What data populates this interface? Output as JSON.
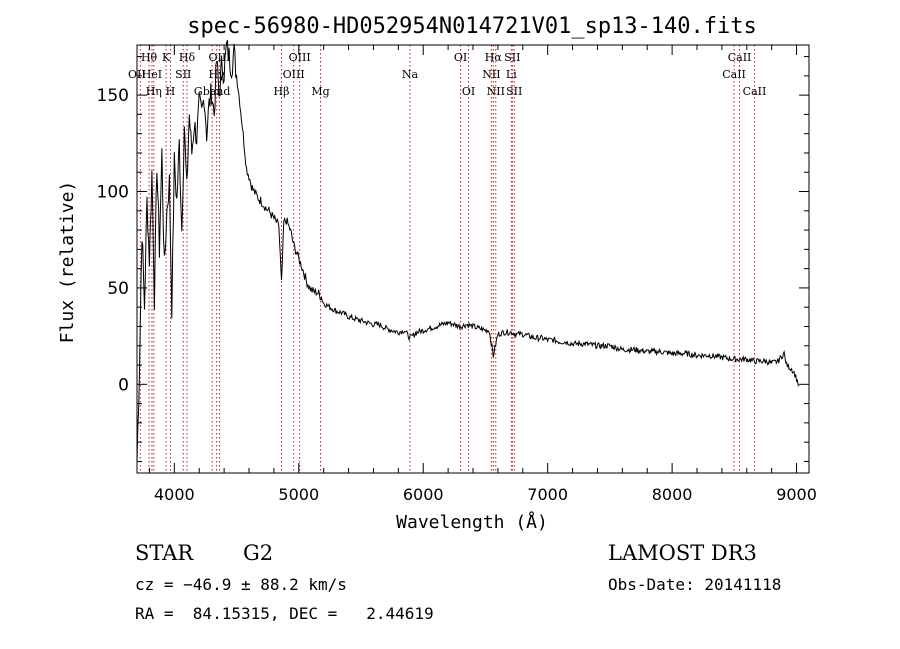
{
  "chart_data": {
    "type": "line",
    "title": "spec-56980-HD052954N014721V01_sp13-140.fits",
    "xlabel": "Wavelength (Å)",
    "ylabel": "Flux (relative)",
    "xlim": [
      3700,
      9100
    ],
    "ylim": [
      -46,
      176
    ],
    "x_ticks": [
      4000,
      5000,
      6000,
      7000,
      8000,
      9000
    ],
    "y_ticks": [
      0,
      50,
      100,
      150
    ],
    "x_tick_labels": [
      "4000",
      "5000",
      "6000",
      "7000",
      "8000",
      "9000"
    ],
    "y_tick_labels": [
      "0",
      "50",
      "100",
      "150"
    ],
    "series": [
      {
        "name": "spectrum",
        "x": [
          3700,
          3720,
          3740,
          3760,
          3780,
          3800,
          3820,
          3840,
          3860,
          3880,
          3900,
          3920,
          3940,
          3960,
          3980,
          4000,
          4020,
          4040,
          4060,
          4080,
          4100,
          4120,
          4140,
          4160,
          4180,
          4200,
          4220,
          4240,
          4260,
          4280,
          4300,
          4320,
          4340,
          4360,
          4380,
          4400,
          4420,
          4440,
          4460,
          4480,
          4500,
          4520,
          4540,
          4560,
          4580,
          4600,
          4620,
          4640,
          4660,
          4680,
          4700,
          4720,
          4740,
          4760,
          4780,
          4800,
          4820,
          4840,
          4861,
          4880,
          4900,
          4920,
          4940,
          4960,
          4980,
          5000,
          5020,
          5040,
          5060,
          5080,
          5100,
          5120,
          5140,
          5160,
          5183,
          5200,
          5250,
          5300,
          5350,
          5400,
          5450,
          5500,
          5550,
          5600,
          5650,
          5700,
          5750,
          5800,
          5850,
          5893,
          5950,
          6000,
          6050,
          6100,
          6150,
          6200,
          6250,
          6300,
          6350,
          6400,
          6450,
          6500,
          6530,
          6563,
          6600,
          6650,
          6700,
          6750,
          6800,
          6850,
          6900,
          6950,
          7000,
          7050,
          7100,
          7150,
          7200,
          7300,
          7400,
          7500,
          7600,
          7700,
          7800,
          7900,
          8000,
          8100,
          8200,
          8300,
          8400,
          8498,
          8542,
          8600,
          8662,
          8700,
          8750,
          8800,
          8850,
          8900,
          8920,
          8940,
          8960,
          8980,
          9000,
          9020
        ],
        "y": [
          -40,
          10,
          80,
          40,
          95,
          65,
          110,
          45,
          115,
          70,
          120,
          60,
          90,
          105,
          40,
          115,
          95,
          125,
          80,
          135,
          100,
          140,
          120,
          135,
          128,
          145,
          140,
          150,
          130,
          145,
          152,
          140,
          168,
          150,
          165,
          162,
          175,
          170,
          165,
          172,
          160,
          150,
          138,
          125,
          112,
          108,
          103,
          100,
          98,
          96,
          95,
          93,
          91,
          90,
          88,
          86,
          84,
          82,
          52,
          84,
          85,
          82,
          78,
          72,
          69,
          65,
          62,
          58,
          54,
          51,
          49,
          48,
          48,
          47,
          45,
          42,
          40,
          38,
          37,
          35,
          34,
          33,
          32,
          31,
          31,
          29,
          28,
          27,
          28,
          24,
          27,
          28,
          29,
          30,
          31,
          32,
          31,
          30,
          31,
          30,
          29,
          28,
          28,
          15,
          26,
          27,
          27,
          26,
          26,
          25,
          24,
          24,
          23,
          23,
          22,
          22,
          21,
          21,
          20,
          20,
          18,
          18,
          17,
          17,
          16,
          16,
          15,
          15,
          14,
          13,
          13,
          13,
          12,
          12,
          12,
          11,
          12,
          16,
          10,
          9,
          8,
          6,
          3,
          -1
        ]
      }
    ],
    "lines": [
      {
        "name": "OII",
        "x": 3727,
        "row": 2,
        "side": "left"
      },
      {
        "name": "Hθ",
        "x": 3797,
        "row": 1,
        "side": "center"
      },
      {
        "name": "HeI",
        "x": 3820,
        "row": 2,
        "side": "center"
      },
      {
        "name": "Hη",
        "x": 3835,
        "row": 3,
        "side": "center"
      },
      {
        "name": "K",
        "x": 3934,
        "row": 1,
        "side": "center"
      },
      {
        "name": "H",
        "x": 3969,
        "row": 3,
        "side": "center"
      },
      {
        "name": "SII",
        "x": 4072,
        "row": 2,
        "side": "center"
      },
      {
        "name": "Hδ",
        "x": 4102,
        "row": 1,
        "side": "center"
      },
      {
        "name": "Gband",
        "x": 4304,
        "row": 3,
        "side": "center"
      },
      {
        "name": "Hγ",
        "x": 4340,
        "row": 2,
        "side": "center"
      },
      {
        "name": "OIII",
        "x": 4363,
        "row": 1,
        "side": "center"
      },
      {
        "name": "Hβ",
        "x": 4861,
        "row": 3,
        "side": "center"
      },
      {
        "name": "OIII",
        "x": 4959,
        "row": 2,
        "side": "center"
      },
      {
        "name": "OIII",
        "x": 5007,
        "row": 1,
        "side": "center"
      },
      {
        "name": "Mg",
        "x": 5175,
        "row": 3,
        "side": "center"
      },
      {
        "name": "Na",
        "x": 5893,
        "row": 2,
        "side": "center"
      },
      {
        "name": "OI",
        "x": 6300,
        "row": 1,
        "side": "center"
      },
      {
        "name": "OI",
        "x": 6364,
        "row": 3,
        "side": "center"
      },
      {
        "name": "NII",
        "x": 6548,
        "row": 2,
        "side": "center"
      },
      {
        "name": "Hα",
        "x": 6563,
        "row": 1,
        "side": "center"
      },
      {
        "name": "NII",
        "x": 6583,
        "row": 3,
        "side": "center"
      },
      {
        "name": "Li",
        "x": 6708,
        "row": 2,
        "side": "center"
      },
      {
        "name": "SII",
        "x": 6716,
        "row": 1,
        "side": "center"
      },
      {
        "name": "SII",
        "x": 6731,
        "row": 3,
        "side": "center"
      },
      {
        "name": "CaII",
        "x": 8498,
        "row": 2,
        "side": "center"
      },
      {
        "name": "CaII",
        "x": 8542,
        "row": 1,
        "side": "center"
      },
      {
        "name": "CaII",
        "x": 8662,
        "row": 3,
        "side": "center"
      }
    ]
  },
  "footer": {
    "object_class": "STAR",
    "subclass": "G2",
    "survey": "LAMOST DR3",
    "velocity": "cz = −46.9 ± 88.2 km/s",
    "obs_date": "Obs-Date: 20141118",
    "coords": "RA =  84.15315, DEC =   2.44619"
  }
}
